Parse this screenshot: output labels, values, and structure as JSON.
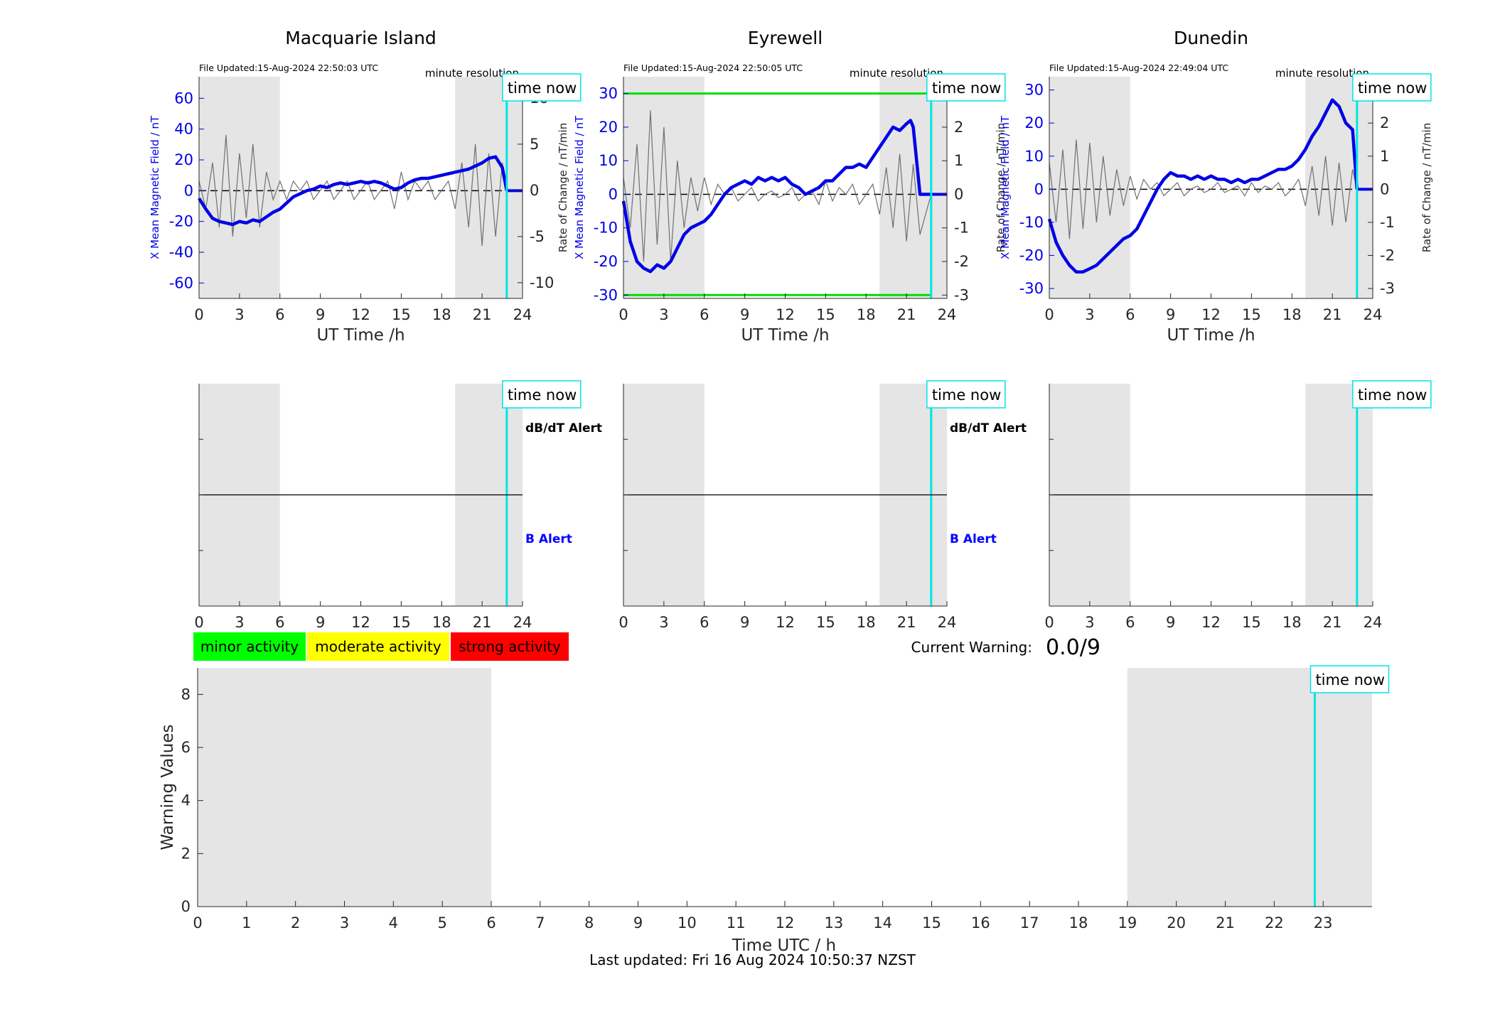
{
  "stations": [
    {
      "name": "Macquarie Island",
      "file_updated": "File Updated:15-Aug-2024 22:50:03 UTC",
      "resolution": "minute resolution",
      "ylabel_left": "X Mean Magnetic Field / nT",
      "ylabel_right": "",
      "yticks_left": [
        "-60",
        "-40",
        "-20",
        "0",
        "20",
        "40",
        "60"
      ],
      "yticks_right": [
        "-10",
        "-5",
        "0",
        "5",
        "10"
      ],
      "xlabel": "UT Time /h",
      "alert_labels": {
        "dbdt": "dB/dT Alert",
        "b": "B Alert"
      }
    },
    {
      "name": "Eyrewell",
      "file_updated": "File Updated:15-Aug-2024 22:50:05 UTC",
      "resolution": "minute resolution",
      "ylabel_left": "X Mean Magnetic Field / nT",
      "ylabel_right": "Rate of Change / nT/min",
      "yticks_left": [
        "-30",
        "-20",
        "-10",
        "0",
        "10",
        "20",
        "30"
      ],
      "yticks_right": [
        "-3",
        "-2",
        "-1",
        "0",
        "1",
        "2",
        "3"
      ],
      "xlabel": "UT Time /h",
      "alert_labels": {
        "dbdt": "dB/dT Alert",
        "b": "B Alert"
      }
    },
    {
      "name": "Dunedin",
      "file_updated": "File Updated:15-Aug-2024 22:49:04 UTC",
      "resolution": "minute resolution",
      "ylabel_left": "X Mean Magnetic Field / nT",
      "ylabel_right": "Rate of Change / nT/min",
      "yticks_left": [
        "-30",
        "-20",
        "-10",
        "0",
        "10",
        "20",
        "30"
      ],
      "yticks_right": [
        "-3",
        "-2",
        "-1",
        "0",
        "1",
        "2",
        "3"
      ],
      "xlabel": "UT Time /h",
      "alert_labels": {
        "dbdt": "",
        "b": ""
      }
    }
  ],
  "rate_ylabel_first": "Rate of Change / nT/min",
  "time_now_label": "time now",
  "station_xticks": [
    "0",
    "3",
    "6",
    "9",
    "12",
    "15",
    "18",
    "21",
    "24"
  ],
  "legend": [
    {
      "label": "minor activity",
      "color": "#00ff00"
    },
    {
      "label": "moderate activity",
      "color": "#ffff00"
    },
    {
      "label": "strong activity",
      "color": "#ff0000"
    }
  ],
  "current_warning": {
    "label": "Current Warning:",
    "value": "0.0/9"
  },
  "warning_chart": {
    "ylabel": "Warning Values",
    "xlabel": "Time UTC / h",
    "yticks": [
      "0",
      "2",
      "4",
      "6",
      "8"
    ],
    "xticks": [
      "0",
      "1",
      "2",
      "3",
      "4",
      "5",
      "6",
      "7",
      "8",
      "9",
      "10",
      "11",
      "12",
      "13",
      "14",
      "15",
      "16",
      "17",
      "18",
      "19",
      "20",
      "21",
      "22",
      "23"
    ]
  },
  "last_updated": "Last updated: Fri 16 Aug 2024 10:50:37 NZST",
  "colors": {
    "field": "#0000e6",
    "rate": "#707070",
    "time_now": "#00e5e5",
    "shade": "#e5e5e5",
    "threshold": "#00dd00",
    "b_alert": "#0000ff"
  },
  "chart_data": [
    {
      "type": "line",
      "title": "Macquarie Island",
      "xlabel": "UT Time /h",
      "ylabel": "X Mean Magnetic Field / nT",
      "xlim": [
        0,
        24
      ],
      "ylim": [
        -70,
        74
      ],
      "y2lim": [
        -11.7,
        12.3
      ],
      "shaded_hours": [
        [
          0,
          6
        ],
        [
          19,
          24
        ]
      ],
      "time_now": 22.83,
      "series": [
        {
          "axis": "left",
          "x": [
            0,
            0.5,
            1,
            1.5,
            2,
            2.5,
            3,
            3.5,
            4,
            4.5,
            5,
            5.5,
            6,
            6.5,
            7,
            7.5,
            8,
            8.5,
            9,
            9.5,
            10,
            10.5,
            11,
            11.5,
            12,
            12.5,
            13,
            13.5,
            14,
            14.5,
            15,
            15.5,
            16,
            16.5,
            17,
            17.5,
            18,
            18.5,
            19,
            19.5,
            20,
            20.5,
            21,
            21.5,
            22,
            22.5,
            22.83
          ],
          "values": [
            -5,
            -12,
            -18,
            -20,
            -21,
            -22,
            -20,
            -21,
            -19,
            -20,
            -17,
            -14,
            -12,
            -8,
            -4,
            -2,
            0,
            1,
            3,
            2,
            4,
            5,
            4,
            5,
            6,
            5,
            6,
            5,
            3,
            1,
            2,
            5,
            7,
            8,
            8,
            9,
            10,
            11,
            12,
            13,
            14,
            16,
            18,
            21,
            22,
            15,
            0
          ]
        },
        {
          "axis": "right",
          "x": [
            0,
            0.5,
            1,
            1.5,
            2,
            2.5,
            3,
            3.5,
            4,
            4.5,
            5,
            5.5,
            6,
            6.5,
            7,
            7.5,
            8,
            8.5,
            9,
            9.5,
            10,
            10.5,
            11,
            11.5,
            12,
            12.5,
            13,
            13.5,
            14,
            14.5,
            15,
            15.5,
            16,
            16.5,
            17,
            17.5,
            18,
            18.5,
            19,
            19.5,
            20,
            20.5,
            21,
            21.5,
            22,
            22.5,
            22.83
          ],
          "values": [
            1,
            -2,
            3,
            -4,
            6,
            -5,
            4,
            -3,
            5,
            -4,
            2,
            -1,
            1,
            -1,
            1,
            0,
            1,
            -1,
            0,
            1,
            -1,
            0,
            1,
            -1,
            0,
            1,
            -1,
            0,
            1,
            -2,
            2,
            -1,
            1,
            0,
            1,
            -1,
            0,
            1,
            -2,
            3,
            -4,
            5,
            -6,
            4,
            -5,
            3,
            0
          ]
        }
      ]
    },
    {
      "type": "line",
      "title": "Eyrewell",
      "xlabel": "UT Time /h",
      "ylabel": "X Mean Magnetic Field / nT",
      "xlim": [
        0,
        24
      ],
      "ylim": [
        -31,
        35
      ],
      "y2lim": [
        -3.1,
        3.5
      ],
      "threshold_lines": [
        30,
        -30
      ],
      "shaded_hours": [
        [
          0,
          6
        ],
        [
          19,
          24
        ]
      ],
      "time_now": 22.83,
      "series": [
        {
          "axis": "left",
          "x": [
            0,
            0.5,
            1,
            1.5,
            2,
            2.5,
            3,
            3.5,
            4,
            4.5,
            5,
            5.5,
            6,
            6.5,
            7,
            7.5,
            8,
            8.5,
            9,
            9.5,
            10,
            10.5,
            11,
            11.5,
            12,
            12.5,
            13,
            13.5,
            14,
            14.5,
            15,
            15.5,
            16,
            16.5,
            17,
            17.5,
            18,
            18.5,
            19,
            19.5,
            20,
            20.5,
            21,
            21.3,
            21.5,
            22,
            22.83
          ],
          "values": [
            -2,
            -14,
            -20,
            -22,
            -23,
            -21,
            -22,
            -20,
            -16,
            -12,
            -10,
            -9,
            -8,
            -6,
            -3,
            0,
            2,
            3,
            4,
            3,
            5,
            4,
            5,
            4,
            5,
            3,
            2,
            0,
            1,
            2,
            4,
            4,
            6,
            8,
            8,
            9,
            8,
            11,
            14,
            17,
            20,
            19,
            21,
            22,
            20,
            0,
            0
          ]
        },
        {
          "axis": "right",
          "x": [
            0,
            0.5,
            1,
            1.5,
            2,
            2.5,
            3,
            3.5,
            4,
            4.5,
            5,
            5.5,
            6,
            6.5,
            7,
            7.5,
            8,
            8.5,
            9,
            9.5,
            10,
            10.5,
            11,
            11.5,
            12,
            12.5,
            13,
            13.5,
            14,
            14.5,
            15,
            15.5,
            16,
            16.5,
            17,
            17.5,
            18,
            18.5,
            19,
            19.5,
            20,
            20.5,
            21,
            21.5,
            22,
            22.83
          ],
          "values": [
            0.5,
            -1,
            1.5,
            -2,
            2.5,
            -1.5,
            2,
            -2,
            1,
            -1,
            0.5,
            -0.5,
            0.5,
            -0.3,
            0.3,
            0,
            0.2,
            -0.2,
            0,
            0.2,
            -0.2,
            0,
            0.1,
            -0.1,
            0,
            0.2,
            -0.2,
            0,
            0.1,
            -0.3,
            0.4,
            -0.2,
            0.2,
            0,
            0.3,
            -0.3,
            0,
            0.3,
            -0.6,
            0.8,
            -1,
            1.2,
            -1.4,
            0.9,
            -1.2,
            0
          ]
        }
      ]
    },
    {
      "type": "line",
      "title": "Dunedin",
      "xlabel": "UT Time /h",
      "ylabel": "X Mean Magnetic Field / nT",
      "xlim": [
        0,
        24
      ],
      "ylim": [
        -33,
        34
      ],
      "y2lim": [
        -3.3,
        3.4
      ],
      "shaded_hours": [
        [
          0,
          6
        ],
        [
          19,
          24
        ]
      ],
      "time_now": 22.83,
      "series": [
        {
          "axis": "left",
          "x": [
            0,
            0.5,
            1,
            1.5,
            2,
            2.5,
            3,
            3.5,
            4,
            4.5,
            5,
            5.5,
            6,
            6.5,
            7,
            7.5,
            8,
            8.5,
            9,
            9.5,
            10,
            10.5,
            11,
            11.5,
            12,
            12.5,
            13,
            13.5,
            14,
            14.5,
            15,
            15.5,
            16,
            16.5,
            17,
            17.5,
            18,
            18.5,
            19,
            19.5,
            20,
            20.5,
            21,
            21.5,
            22,
            22.5,
            22.83
          ],
          "values": [
            -9,
            -16,
            -20,
            -23,
            -25,
            -25,
            -24,
            -23,
            -21,
            -19,
            -17,
            -15,
            -14,
            -12,
            -8,
            -4,
            0,
            3,
            5,
            4,
            4,
            3,
            4,
            3,
            4,
            3,
            3,
            2,
            3,
            2,
            3,
            3,
            4,
            5,
            6,
            6,
            7,
            9,
            12,
            16,
            19,
            23,
            27,
            25,
            20,
            18,
            0
          ]
        },
        {
          "axis": "right",
          "x": [
            0,
            0.5,
            1,
            1.5,
            2,
            2.5,
            3,
            3.5,
            4,
            4.5,
            5,
            5.5,
            6,
            6.5,
            7,
            7.5,
            8,
            8.5,
            9,
            9.5,
            10,
            10.5,
            11,
            11.5,
            12,
            12.5,
            13,
            13.5,
            14,
            14.5,
            15,
            15.5,
            16,
            16.5,
            17,
            17.5,
            18,
            18.5,
            19,
            19.5,
            20,
            20.5,
            21,
            21.5,
            22,
            22.5,
            22.83
          ],
          "values": [
            0.8,
            -1,
            1.2,
            -1.5,
            1.5,
            -1.2,
            1.4,
            -1,
            1,
            -0.8,
            0.6,
            -0.5,
            0.4,
            -0.3,
            0.3,
            0,
            0.2,
            -0.2,
            0,
            0.2,
            -0.2,
            0,
            0.1,
            -0.1,
            0,
            0.2,
            -0.1,
            0,
            0.1,
            -0.2,
            0.2,
            -0.1,
            0.1,
            0,
            0.2,
            -0.2,
            0,
            0.3,
            -0.5,
            0.7,
            -0.8,
            1,
            -1.1,
            0.8,
            -1,
            0.6,
            0
          ]
        }
      ]
    },
    {
      "type": "bar",
      "title": "",
      "xlabel": "Time UTC / h",
      "ylabel": "Warning Values",
      "xlim": [
        0,
        24
      ],
      "ylim": [
        0,
        9
      ],
      "shaded_hours": [
        [
          0,
          6
        ],
        [
          19,
          24
        ]
      ],
      "time_now": 22.83,
      "x": [],
      "values": []
    }
  ]
}
